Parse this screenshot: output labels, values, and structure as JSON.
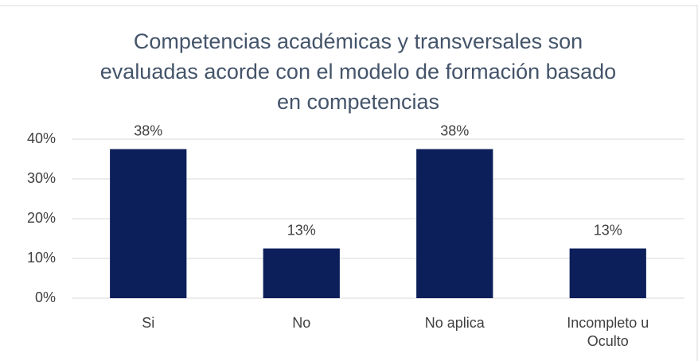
{
  "chart_data": {
    "type": "bar",
    "title": "Competencias académicas y transversales son evaluadas acorde con el modelo de formación basado en competencias",
    "categories": [
      "Si",
      "No",
      "No aplica",
      "Incompleto u Oculto"
    ],
    "values": [
      37.5,
      12.5,
      37.5,
      12.5
    ],
    "value_labels": [
      "38%",
      "13%",
      "38%",
      "13%"
    ],
    "color": "#0c1f5a",
    "ylim": [
      0,
      40
    ],
    "yticks": [
      {
        "value": 0,
        "label": "0%"
      },
      {
        "value": 10,
        "label": "10%"
      },
      {
        "value": 20,
        "label": "20%"
      },
      {
        "value": 30,
        "label": "30%"
      },
      {
        "value": 40,
        "label": "40%"
      }
    ],
    "grid": true
  }
}
